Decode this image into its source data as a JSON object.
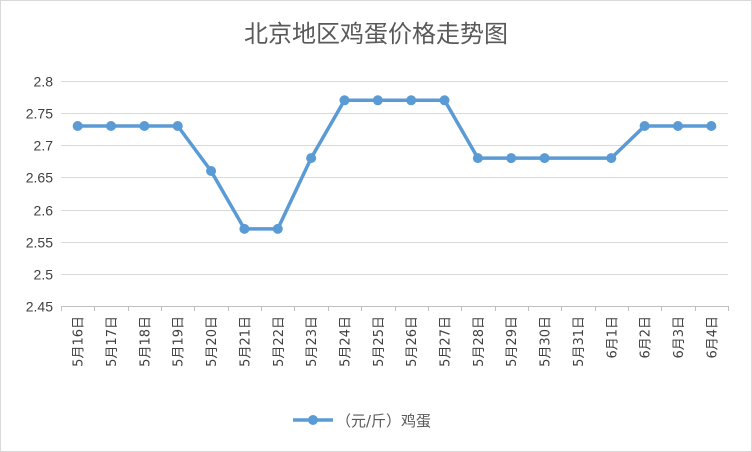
{
  "chart_data": {
    "type": "line",
    "title": "北京地区鸡蛋价格走势图",
    "categories": [
      "5月16日",
      "5月17日",
      "5月18日",
      "5月19日",
      "5月20日",
      "5月21日",
      "5月22日",
      "5月23日",
      "5月24日",
      "5月25日",
      "5月26日",
      "5月27日",
      "5月28日",
      "5月29日",
      "5月30日",
      "5月31日",
      "6月1日",
      "6月2日",
      "6月3日",
      "6月4日"
    ],
    "series": [
      {
        "name": "（元/斤）鸡蛋",
        "values": [
          2.73,
          2.73,
          2.73,
          2.73,
          2.66,
          2.57,
          2.57,
          2.68,
          2.77,
          2.77,
          2.77,
          2.77,
          2.68,
          2.68,
          2.68,
          null,
          2.68,
          2.73,
          2.73,
          2.73
        ]
      }
    ],
    "y_ticks": [
      "2.45",
      "2.5",
      "2.55",
      "2.6",
      "2.65",
      "2.7",
      "2.75",
      "2.8"
    ],
    "ylim": [
      2.45,
      2.8
    ],
    "grid": true,
    "legend_position": "bottom",
    "colors": {
      "line": "#5b9bd5",
      "grid": "#d9d9d9",
      "axis": "#bfbfbf"
    }
  }
}
